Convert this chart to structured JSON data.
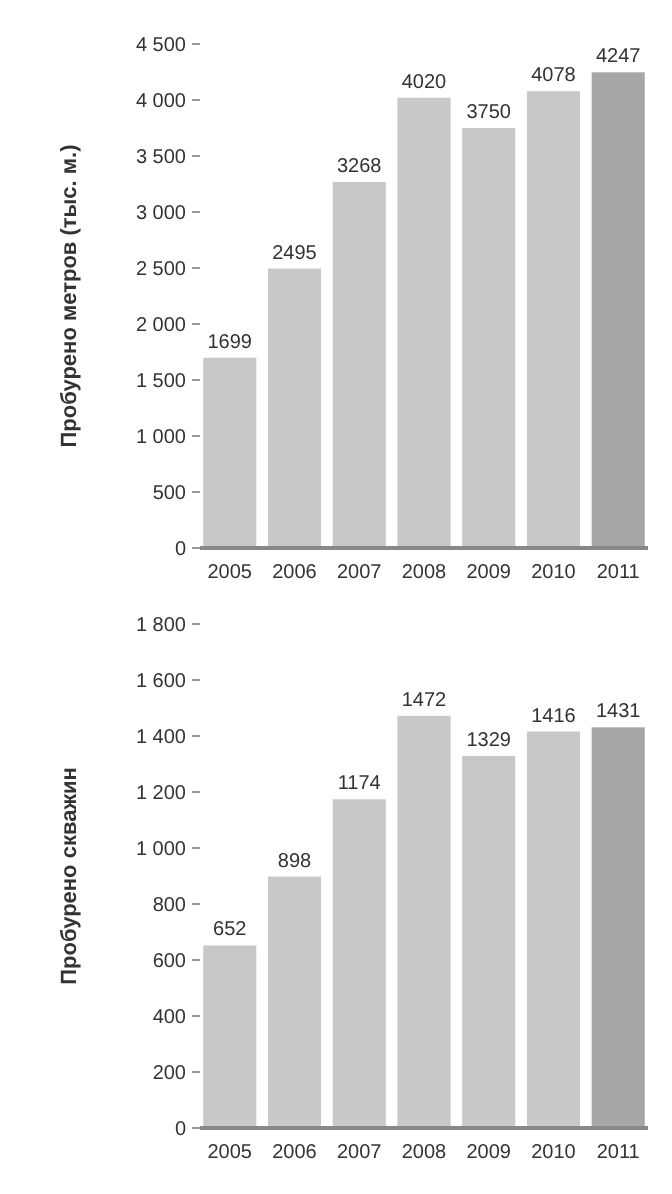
{
  "chart_data": [
    {
      "type": "bar",
      "ylabel": "Пробурено метров (тыс. м.)",
      "categories": [
        "2005",
        "2006",
        "2007",
        "2008",
        "2009",
        "2010",
        "2011"
      ],
      "values": [
        1699,
        2495,
        3268,
        4020,
        3750,
        4078,
        4247
      ],
      "colors": [
        "#c8c8c8",
        "#c8c8c8",
        "#c8c8c8",
        "#c8c8c8",
        "#c8c8c8",
        "#c8c8c8",
        "#a6a6a6"
      ],
      "ylim": [
        0,
        4500
      ],
      "yticks": [
        0,
        {
          "value": 500,
          "label": "500"
        },
        {
          "value": 1000,
          "label": "1 000"
        },
        {
          "value": 1500,
          "label": "1 500"
        },
        {
          "value": 2000,
          "label": "2 000"
        },
        {
          "value": 2500,
          "label": "2 500"
        },
        {
          "value": 3000,
          "label": "3 000"
        },
        {
          "value": 3500,
          "label": "3 500"
        },
        {
          "value": 4000,
          "label": "4 000"
        },
        {
          "value": 4500,
          "label": "4 500"
        }
      ],
      "data_labels": true,
      "grid": false
    },
    {
      "type": "bar",
      "ylabel": "Пробурено скважин",
      "categories": [
        "2005",
        "2006",
        "2007",
        "2008",
        "2009",
        "2010",
        "2011"
      ],
      "values": [
        652,
        898,
        1174,
        1472,
        1329,
        1416,
        1431
      ],
      "colors": [
        "#c8c8c8",
        "#c8c8c8",
        "#c8c8c8",
        "#c8c8c8",
        "#c8c8c8",
        "#c8c8c8",
        "#a6a6a6"
      ],
      "ylim": [
        0,
        1800
      ],
      "yticks": [
        0,
        {
          "value": 200,
          "label": "200"
        },
        {
          "value": 400,
          "label": "400"
        },
        {
          "value": 600,
          "label": "600"
        },
        {
          "value": 800,
          "label": "800"
        },
        {
          "value": 1000,
          "label": "1 000"
        },
        {
          "value": 1200,
          "label": "1 200"
        },
        {
          "value": 1400,
          "label": "1 400"
        },
        {
          "value": 1600,
          "label": "1 600"
        },
        {
          "value": 1800,
          "label": "1 800"
        }
      ],
      "data_labels": true,
      "grid": false
    }
  ]
}
